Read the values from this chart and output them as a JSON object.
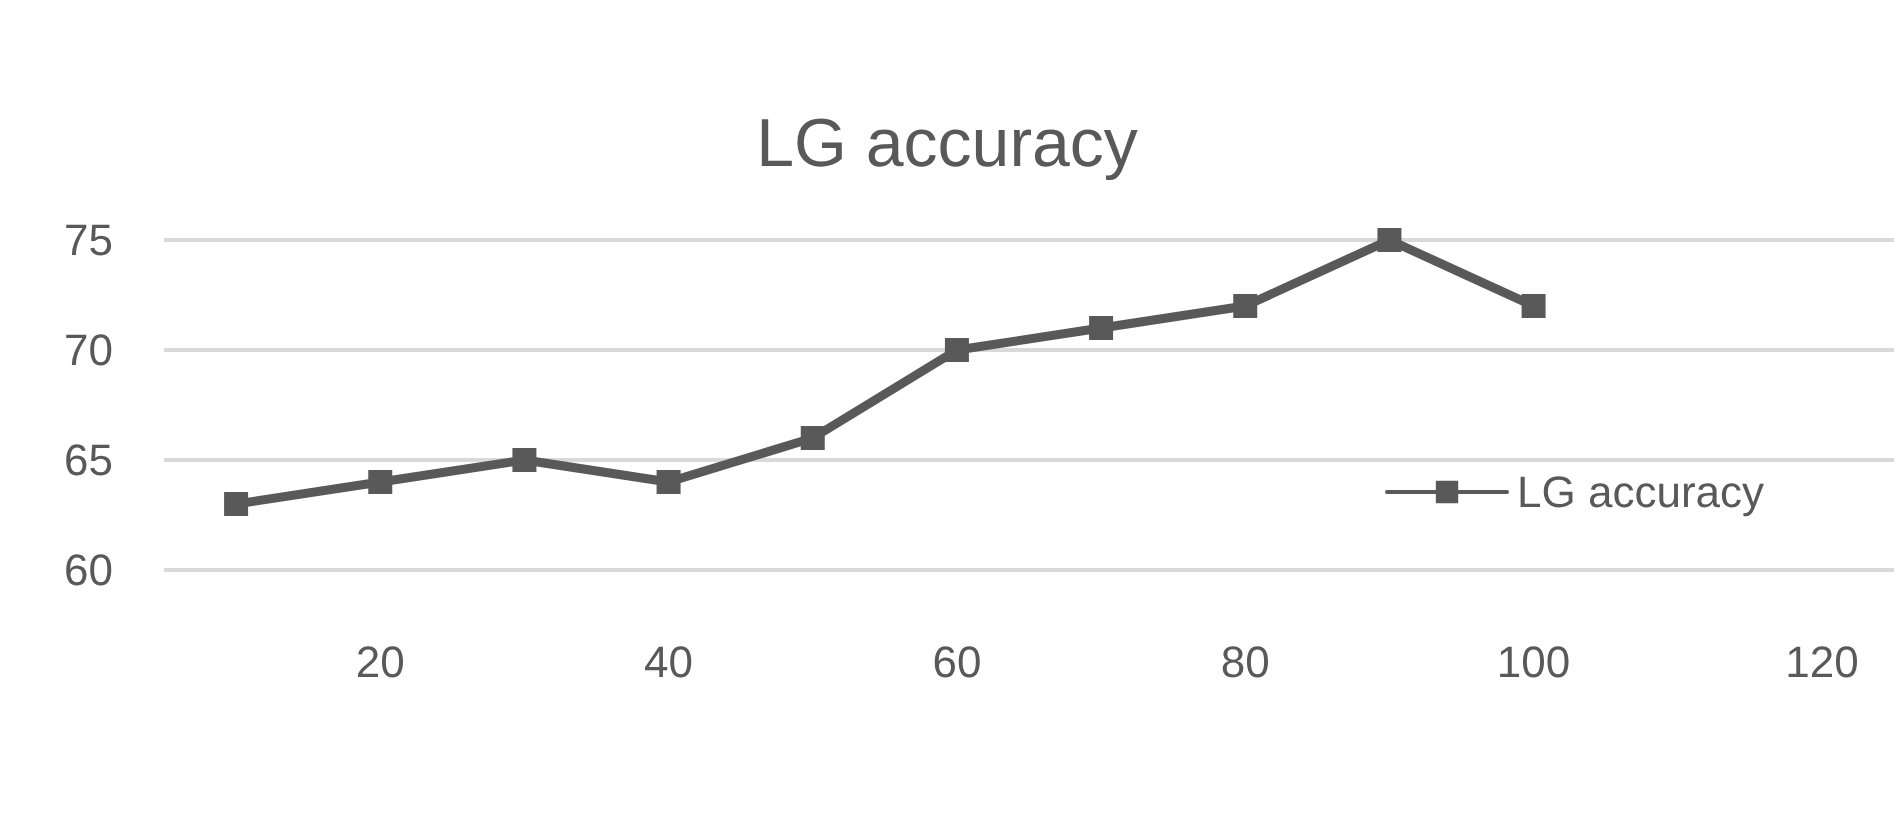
{
  "chart_data": {
    "type": "line",
    "title": "LG accuracy",
    "x": [
      10,
      20,
      30,
      40,
      50,
      60,
      70,
      80,
      90,
      100
    ],
    "series": [
      {
        "name": "LG accuracy",
        "color": "#595959",
        "values": [
          63,
          64,
          65,
          64,
          66,
          70,
          71,
          72,
          75,
          72
        ]
      }
    ],
    "xlim": [
      5,
      125
    ],
    "xticks": [
      20,
      40,
      60,
      80,
      100,
      120
    ],
    "ylim": [
      60,
      75
    ],
    "yticks": [
      60,
      65,
      70,
      75
    ],
    "grid": "y",
    "legend": "right",
    "marker": "square",
    "line_style": "solid"
  }
}
